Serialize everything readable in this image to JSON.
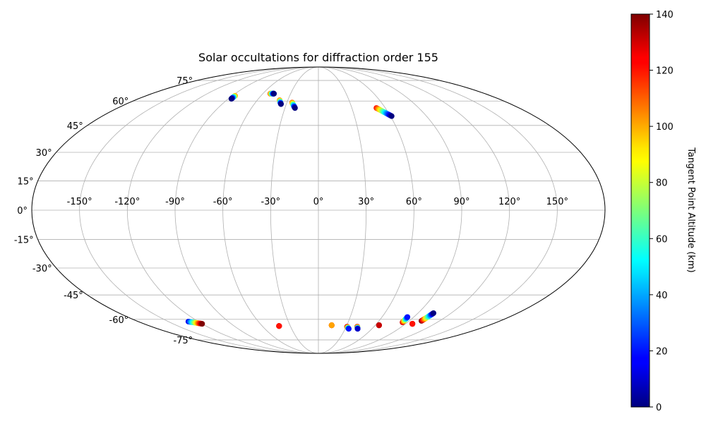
{
  "chart_data": {
    "type": "scatter",
    "projection": "mollweide",
    "title": "Solar occultations for diffraction order 155",
    "lon_ticks": [
      -150,
      -120,
      -90,
      -60,
      -30,
      0,
      30,
      60,
      90,
      120,
      150
    ],
    "lon_tick_labels": [
      "-150°",
      "-120°",
      "-90°",
      "-60°",
      "-30°",
      "0°",
      "30°",
      "60°",
      "90°",
      "120°",
      "150°"
    ],
    "lat_ticks": [
      75,
      60,
      45,
      30,
      15,
      0,
      -15,
      -30,
      -45,
      -60,
      -75
    ],
    "lat_tick_labels": [
      "75°",
      "60°",
      "45°",
      "30°",
      "15°",
      "0°",
      "-15°",
      "-30°",
      "-45°",
      "-60°",
      "-75°"
    ],
    "grid": true,
    "colormap": "jet",
    "colorbar": {
      "label": "Tangent Point Altitude (km)",
      "range": [
        0,
        140
      ],
      "ticks": [
        0,
        20,
        40,
        60,
        80,
        100,
        120,
        140
      ],
      "tick_labels": [
        "0",
        "20",
        "40",
        "60",
        "80",
        "100",
        "120",
        "140"
      ]
    },
    "tracks": [
      {
        "lon_start": -87,
        "lat_start": 63.5,
        "alt_start": 105,
        "lon_end": -87,
        "lat_end": 61.5,
        "alt_end": 0
      },
      {
        "lon_start": -52,
        "lat_start": 65,
        "alt_start": 115,
        "lon_end": -48,
        "lat_end": 65,
        "alt_end": 0
      },
      {
        "lon_start": -38,
        "lat_start": 60.5,
        "alt_start": 110,
        "lon_end": -35,
        "lat_end": 58,
        "alt_end": 0
      },
      {
        "lon_start": -25,
        "lat_start": 59,
        "alt_start": 110,
        "lon_end": -21,
        "lat_end": 55.5,
        "alt_end": 0
      },
      {
        "lon_start": 52,
        "lat_start": 55.5,
        "alt_start": 120,
        "lon_end": 61,
        "lat_end": 50.5,
        "alt_end": 0
      },
      {
        "lon_start": -130,
        "lat_start": -61.5,
        "alt_start": 15,
        "lon_end": -120,
        "lat_end": -63,
        "alt_end": 140
      },
      {
        "lon_start": -42,
        "lat_start": -64.5,
        "alt_start": 140,
        "lon_end": -42,
        "lat_end": -64.5,
        "alt_end": 120
      },
      {
        "lon_start": 14,
        "lat_start": -64,
        "alt_start": 140,
        "lon_end": 14,
        "lat_end": -64,
        "alt_end": 100
      },
      {
        "lon_start": 31,
        "lat_start": -65,
        "alt_start": 140,
        "lon_end": 34,
        "lat_end": -66.5,
        "alt_end": 20
      },
      {
        "lon_start": 42,
        "lat_start": -65,
        "alt_start": 140,
        "lon_end": 44,
        "lat_end": -66.5,
        "alt_end": 10
      },
      {
        "lon_start": 64,
        "lat_start": -64,
        "alt_start": 140,
        "lon_end": 64,
        "lat_end": -64,
        "alt_end": 130
      },
      {
        "lon_start": 85,
        "lat_start": -62,
        "alt_start": 130,
        "lon_end": 84,
        "lat_end": -58.5,
        "alt_end": 20
      },
      {
        "lon_start": 97,
        "lat_start": -63,
        "alt_start": 140,
        "lon_end": 97,
        "lat_end": -63,
        "alt_end": 120
      },
      {
        "lon_start": 102,
        "lat_start": -61,
        "alt_start": 140,
        "lon_end": 104,
        "lat_end": -56,
        "alt_end": 0
      }
    ]
  }
}
